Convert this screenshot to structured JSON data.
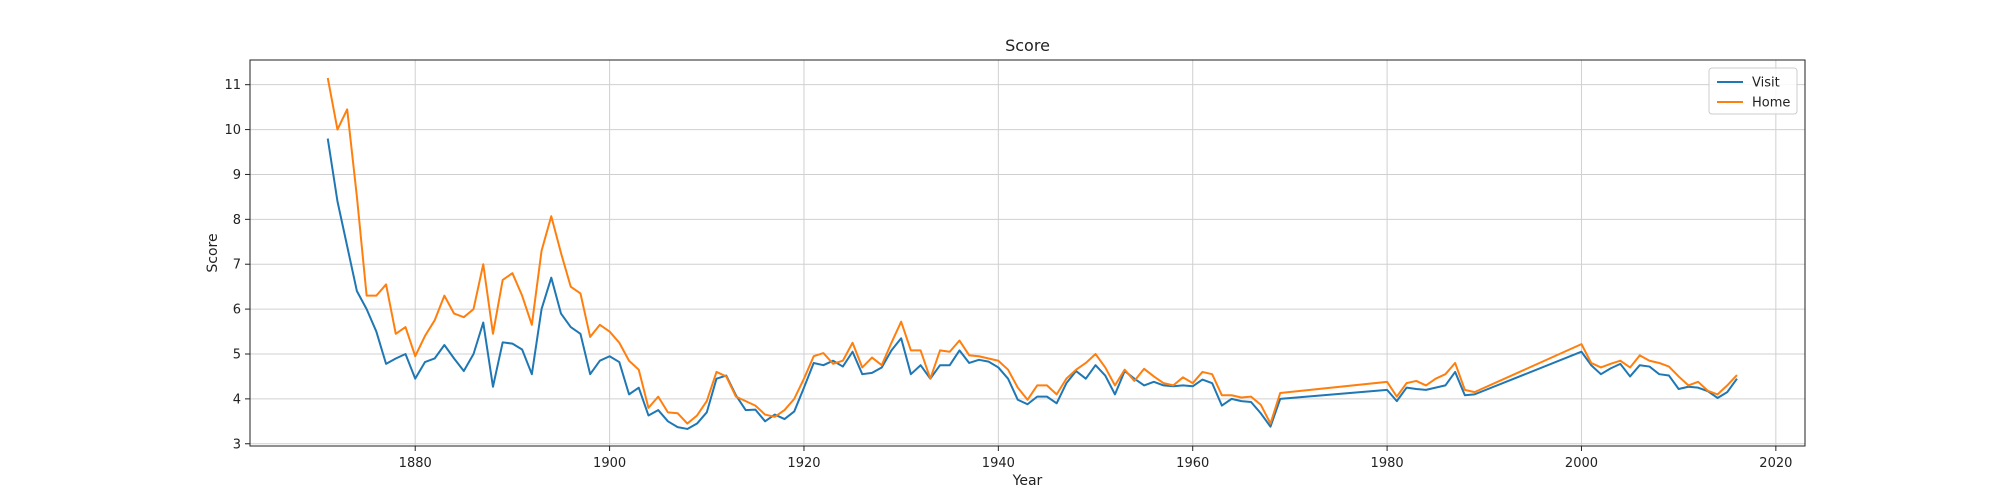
{
  "chart_data": {
    "type": "line",
    "title": "Score",
    "xlabel": "Year",
    "ylabel": "Score",
    "xlim": [
      1863,
      2023
    ],
    "ylim": [
      2.95,
      11.55
    ],
    "x_ticks": [
      1880,
      1900,
      1920,
      1940,
      1960,
      1980,
      2000,
      2020
    ],
    "y_ticks": [
      3,
      4,
      5,
      6,
      7,
      8,
      9,
      10,
      11
    ],
    "grid": true,
    "legend_position": "top-right",
    "colors": {
      "Visit": "#1f77b4",
      "Home": "#ff7f0e"
    },
    "series": [
      {
        "name": "Visit",
        "x": [
          1871,
          1872,
          1873,
          1874,
          1875,
          1876,
          1877,
          1878,
          1879,
          1880,
          1881,
          1882,
          1883,
          1884,
          1885,
          1886,
          1887,
          1888,
          1889,
          1890,
          1891,
          1892,
          1893,
          1894,
          1895,
          1896,
          1897,
          1898,
          1899,
          1900,
          1901,
          1902,
          1903,
          1904,
          1905,
          1906,
          1907,
          1908,
          1909,
          1910,
          1911,
          1912,
          1913,
          1914,
          1915,
          1916,
          1917,
          1918,
          1919,
          1920,
          1921,
          1922,
          1923,
          1924,
          1925,
          1926,
          1927,
          1928,
          1929,
          1930,
          1931,
          1932,
          1933,
          1934,
          1935,
          1936,
          1937,
          1938,
          1939,
          1940,
          1941,
          1942,
          1943,
          1944,
          1945,
          1946,
          1947,
          1948,
          1949,
          1950,
          1951,
          1952,
          1953,
          1954,
          1955,
          1956,
          1957,
          1958,
          1959,
          1960,
          1961,
          1962,
          1963,
          1964,
          1965,
          1966,
          1967,
          1968,
          1969,
          1980,
          1981,
          1982,
          1983,
          1984,
          1985,
          1986,
          1987,
          1988,
          1989,
          2000,
          2001,
          2002,
          2003,
          2004,
          2005,
          2006,
          2007,
          2008,
          2009,
          2010,
          2011,
          2012,
          2013,
          2014,
          2015,
          2016
        ],
        "values": [
          9.8,
          8.4,
          7.4,
          6.4,
          6.0,
          5.5,
          4.78,
          4.9,
          5.0,
          4.45,
          4.82,
          4.9,
          5.2,
          4.9,
          4.62,
          5.0,
          5.7,
          4.27,
          5.26,
          5.23,
          5.1,
          4.55,
          6.0,
          6.7,
          5.9,
          5.6,
          5.45,
          4.55,
          4.85,
          4.95,
          4.82,
          4.1,
          4.25,
          3.63,
          3.75,
          3.5,
          3.37,
          3.33,
          3.45,
          3.7,
          4.45,
          4.52,
          4.08,
          3.75,
          3.76,
          3.5,
          3.65,
          3.55,
          3.72,
          4.25,
          4.8,
          4.75,
          4.85,
          4.72,
          5.05,
          4.55,
          4.58,
          4.7,
          5.08,
          5.35,
          4.55,
          4.75,
          4.45,
          4.75,
          4.75,
          5.08,
          4.8,
          4.87,
          4.83,
          4.7,
          4.45,
          3.98,
          3.88,
          4.05,
          4.05,
          3.9,
          4.35,
          4.62,
          4.45,
          4.75,
          4.52,
          4.1,
          4.62,
          4.45,
          4.3,
          4.38,
          4.3,
          4.28,
          4.3,
          4.28,
          4.43,
          4.35,
          3.85,
          4.0,
          3.95,
          3.93,
          3.68,
          3.38,
          4.0,
          4.2,
          3.95,
          4.25,
          4.22,
          4.2,
          4.25,
          4.3,
          4.6,
          4.08,
          4.1,
          5.05,
          4.75,
          4.55,
          4.68,
          4.78,
          4.5,
          4.75,
          4.72,
          4.55,
          4.52,
          4.22,
          4.27,
          4.25,
          4.17,
          4.02,
          4.15,
          4.45
        ]
      },
      {
        "name": "Home",
        "x": [
          1871,
          1872,
          1873,
          1874,
          1875,
          1876,
          1877,
          1878,
          1879,
          1880,
          1881,
          1882,
          1883,
          1884,
          1885,
          1886,
          1887,
          1888,
          1889,
          1890,
          1891,
          1892,
          1893,
          1894,
          1895,
          1896,
          1897,
          1898,
          1899,
          1900,
          1901,
          1902,
          1903,
          1904,
          1905,
          1906,
          1907,
          1908,
          1909,
          1910,
          1911,
          1912,
          1913,
          1914,
          1915,
          1916,
          1917,
          1918,
          1919,
          1920,
          1921,
          1922,
          1923,
          1924,
          1925,
          1926,
          1927,
          1928,
          1929,
          1930,
          1931,
          1932,
          1933,
          1934,
          1935,
          1936,
          1937,
          1938,
          1939,
          1940,
          1941,
          1942,
          1943,
          1944,
          1945,
          1946,
          1947,
          1948,
          1949,
          1950,
          1951,
          1952,
          1953,
          1954,
          1955,
          1956,
          1957,
          1958,
          1959,
          1960,
          1961,
          1962,
          1963,
          1964,
          1965,
          1966,
          1967,
          1968,
          1969,
          1980,
          1981,
          1982,
          1983,
          1984,
          1985,
          1986,
          1987,
          1988,
          1989,
          2000,
          2001,
          2002,
          2003,
          2004,
          2005,
          2006,
          2007,
          2008,
          2009,
          2010,
          2011,
          2012,
          2013,
          2014,
          2015,
          2016
        ],
        "values": [
          11.15,
          10.0,
          10.45,
          8.5,
          6.3,
          6.3,
          6.55,
          5.45,
          5.6,
          4.95,
          5.4,
          5.75,
          6.3,
          5.9,
          5.82,
          6.0,
          7.0,
          5.45,
          6.65,
          6.8,
          6.3,
          5.65,
          7.3,
          8.07,
          7.25,
          6.5,
          6.35,
          5.38,
          5.65,
          5.5,
          5.25,
          4.85,
          4.65,
          3.8,
          4.05,
          3.7,
          3.68,
          3.45,
          3.63,
          3.95,
          4.6,
          4.5,
          4.05,
          3.95,
          3.85,
          3.65,
          3.6,
          3.75,
          4.0,
          4.45,
          4.95,
          5.02,
          4.78,
          4.85,
          5.25,
          4.7,
          4.92,
          4.75,
          5.25,
          5.72,
          5.08,
          5.08,
          4.45,
          5.08,
          5.05,
          5.3,
          4.97,
          4.95,
          4.9,
          4.85,
          4.65,
          4.25,
          3.98,
          4.3,
          4.3,
          4.1,
          4.45,
          4.65,
          4.8,
          5.0,
          4.7,
          4.3,
          4.65,
          4.4,
          4.67,
          4.5,
          4.35,
          4.3,
          4.48,
          4.35,
          4.6,
          4.55,
          4.08,
          4.08,
          4.03,
          4.05,
          3.87,
          3.45,
          4.13,
          4.38,
          4.05,
          4.35,
          4.4,
          4.3,
          4.45,
          4.55,
          4.8,
          4.2,
          4.15,
          5.22,
          4.8,
          4.7,
          4.78,
          4.85,
          4.7,
          4.97,
          4.85,
          4.8,
          4.72,
          4.5,
          4.3,
          4.38,
          4.18,
          4.1,
          4.3,
          4.53
        ]
      }
    ]
  }
}
